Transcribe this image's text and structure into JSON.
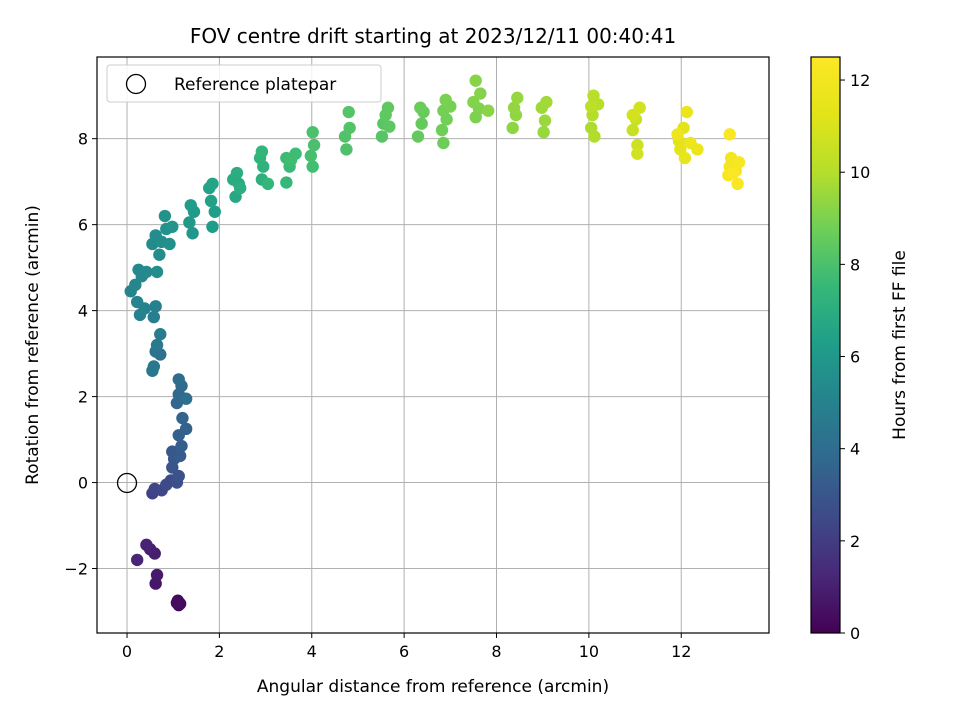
{
  "chart_data": {
    "type": "scatter",
    "title": "FOV centre drift starting at 2023/12/11 00:40:41",
    "xlabel": "Angular distance from reference (arcmin)",
    "ylabel": "Rotation from reference (arcmin)",
    "xlim": [
      -0.65,
      13.9
    ],
    "ylim": [
      -3.5,
      9.9
    ],
    "xticks": [
      0,
      2,
      4,
      6,
      8,
      10,
      12
    ],
    "yticks": [
      -2,
      0,
      2,
      4,
      6,
      8
    ],
    "xtick_labels": [
      "0",
      "2",
      "4",
      "6",
      "8",
      "10",
      "12"
    ],
    "ytick_labels": [
      "−2",
      "0",
      "2",
      "4",
      "6",
      "8"
    ],
    "grid": true,
    "legend": {
      "label": "Reference platepar",
      "placement": "top-left",
      "marker": "open-circle"
    },
    "reference_point": {
      "x": 0,
      "y": 0
    },
    "colorbar": {
      "label": "Hours from first FF file",
      "colormap": "viridis",
      "range": [
        0,
        12.5
      ],
      "ticks": [
        0,
        2,
        4,
        6,
        8,
        10,
        12
      ],
      "tick_labels": [
        "0",
        "2",
        "4",
        "6",
        "8",
        "10",
        "12"
      ]
    },
    "series": [
      {
        "points": [
          [
            1.12,
            -2.85,
            0.1
          ],
          [
            1.1,
            -2.75,
            0.2
          ],
          [
            1.15,
            -2.82,
            0.3
          ],
          [
            1.08,
            -2.8,
            0.4
          ],
          [
            0.62,
            -2.35,
            0.7
          ],
          [
            0.65,
            -2.15,
            0.8
          ],
          [
            0.6,
            -1.65,
            0.9
          ],
          [
            0.5,
            -1.55,
            1.0
          ],
          [
            0.42,
            -1.45,
            1.1
          ],
          [
            0.22,
            -1.8,
            1.2
          ],
          [
            0.55,
            -0.25,
            2.2
          ],
          [
            0.6,
            -0.15,
            2.3
          ],
          [
            0.75,
            -0.18,
            2.4
          ],
          [
            0.85,
            -0.05,
            2.5
          ],
          [
            0.95,
            0.05,
            2.6
          ],
          [
            1.08,
            0.0,
            2.7
          ],
          [
            1.12,
            0.15,
            2.8
          ],
          [
            0.98,
            0.35,
            2.9
          ],
          [
            1.02,
            0.55,
            3.0
          ],
          [
            0.98,
            0.72,
            3.1
          ],
          [
            1.15,
            0.62,
            3.2
          ],
          [
            1.18,
            0.85,
            3.3
          ],
          [
            1.12,
            1.1,
            3.4
          ],
          [
            1.28,
            1.25,
            3.5
          ],
          [
            1.2,
            1.5,
            3.6
          ],
          [
            1.08,
            1.85,
            3.7
          ],
          [
            1.12,
            2.05,
            3.8
          ],
          [
            1.18,
            2.25,
            3.9
          ],
          [
            1.12,
            2.4,
            4.0
          ],
          [
            1.28,
            1.95,
            4.1
          ],
          [
            0.72,
            2.98,
            4.2
          ],
          [
            0.62,
            3.05,
            4.3
          ],
          [
            0.55,
            2.6,
            4.4
          ],
          [
            0.58,
            2.7,
            4.5
          ],
          [
            0.65,
            3.2,
            4.6
          ],
          [
            0.72,
            3.45,
            4.7
          ],
          [
            0.58,
            3.85,
            4.8
          ],
          [
            0.62,
            4.1,
            4.9
          ],
          [
            0.28,
            3.9,
            5.0
          ],
          [
            0.38,
            4.05,
            5.05
          ],
          [
            0.22,
            4.2,
            5.1
          ],
          [
            0.08,
            4.45,
            5.15
          ],
          [
            0.18,
            4.6,
            5.2
          ],
          [
            0.32,
            4.8,
            5.25
          ],
          [
            0.25,
            4.95,
            5.3
          ],
          [
            0.42,
            4.9,
            5.35
          ],
          [
            0.55,
            5.55,
            5.4
          ],
          [
            0.62,
            5.75,
            5.45
          ],
          [
            0.7,
            5.3,
            5.5
          ],
          [
            0.75,
            5.6,
            5.55
          ],
          [
            0.65,
            4.9,
            5.6
          ],
          [
            0.92,
            5.55,
            5.65
          ],
          [
            0.85,
            5.9,
            5.7
          ],
          [
            0.82,
            6.2,
            5.75
          ],
          [
            0.98,
            5.95,
            5.8
          ],
          [
            1.42,
            5.8,
            5.9
          ],
          [
            1.35,
            6.05,
            6.0
          ],
          [
            1.45,
            6.3,
            6.1
          ],
          [
            1.38,
            6.45,
            6.15
          ],
          [
            1.85,
            5.95,
            6.2
          ],
          [
            1.9,
            6.3,
            6.3
          ],
          [
            1.82,
            6.55,
            6.4
          ],
          [
            1.78,
            6.85,
            6.5
          ],
          [
            1.85,
            6.95,
            6.6
          ],
          [
            2.35,
            6.65,
            6.7
          ],
          [
            2.42,
            6.95,
            6.8
          ],
          [
            2.3,
            7.05,
            6.9
          ],
          [
            2.38,
            7.2,
            7.0
          ],
          [
            2.45,
            6.85,
            7.05
          ],
          [
            2.92,
            7.05,
            7.1
          ],
          [
            2.95,
            7.35,
            7.2
          ],
          [
            2.88,
            7.55,
            7.3
          ],
          [
            2.92,
            7.7,
            7.4
          ],
          [
            3.05,
            6.95,
            7.45
          ],
          [
            3.45,
            6.98,
            7.5
          ],
          [
            3.52,
            7.35,
            7.6
          ],
          [
            3.45,
            7.55,
            7.65
          ],
          [
            3.65,
            7.65,
            7.7
          ],
          [
            3.55,
            7.5,
            7.75
          ],
          [
            4.02,
            7.35,
            7.8
          ],
          [
            3.98,
            7.6,
            7.9
          ],
          [
            4.05,
            7.85,
            7.95
          ],
          [
            4.02,
            8.15,
            8.0
          ],
          [
            4.75,
            7.75,
            8.05
          ],
          [
            4.72,
            8.05,
            8.1
          ],
          [
            4.82,
            8.25,
            8.15
          ],
          [
            4.8,
            8.62,
            8.2
          ],
          [
            5.52,
            8.05,
            8.25
          ],
          [
            5.55,
            8.35,
            8.3
          ],
          [
            5.68,
            8.28,
            8.35
          ],
          [
            5.6,
            8.55,
            8.4
          ],
          [
            5.65,
            8.72,
            8.45
          ],
          [
            6.3,
            8.05,
            8.5
          ],
          [
            6.38,
            8.35,
            8.55
          ],
          [
            6.42,
            8.62,
            8.6
          ],
          [
            6.35,
            8.72,
            8.65
          ],
          [
            6.85,
            7.9,
            8.7
          ],
          [
            6.82,
            8.2,
            8.75
          ],
          [
            6.92,
            8.45,
            8.8
          ],
          [
            6.85,
            8.65,
            8.85
          ],
          [
            7.0,
            8.75,
            8.9
          ],
          [
            6.9,
            8.9,
            8.95
          ],
          [
            7.55,
            8.5,
            9.0
          ],
          [
            7.62,
            8.7,
            9.05
          ],
          [
            7.5,
            8.85,
            9.1
          ],
          [
            7.65,
            9.05,
            9.15
          ],
          [
            7.55,
            9.35,
            9.2
          ],
          [
            7.82,
            8.65,
            9.25
          ],
          [
            8.35,
            8.25,
            9.3
          ],
          [
            8.42,
            8.55,
            9.35
          ],
          [
            8.38,
            8.72,
            9.4
          ],
          [
            8.45,
            8.95,
            9.45
          ],
          [
            9.02,
            8.15,
            9.5
          ],
          [
            9.05,
            8.42,
            9.55
          ],
          [
            8.98,
            8.72,
            9.6
          ],
          [
            9.08,
            8.85,
            9.65
          ],
          [
            10.05,
            8.25,
            9.85
          ],
          [
            10.12,
            8.05,
            9.95
          ],
          [
            10.08,
            8.55,
            10.0
          ],
          [
            10.2,
            8.8,
            10.1
          ],
          [
            10.1,
            9.0,
            10.15
          ],
          [
            10.05,
            8.75,
            10.2
          ],
          [
            10.95,
            8.2,
            10.5
          ],
          [
            11.02,
            8.45,
            10.55
          ],
          [
            11.05,
            7.85,
            10.65
          ],
          [
            11.05,
            7.65,
            10.75
          ],
          [
            11.1,
            8.72,
            10.8
          ],
          [
            10.95,
            8.55,
            10.85
          ],
          [
            11.95,
            7.95,
            11.2
          ],
          [
            12.05,
            8.25,
            11.3
          ],
          [
            11.98,
            7.75,
            11.4
          ],
          [
            12.08,
            7.55,
            11.5
          ],
          [
            12.12,
            8.62,
            11.6
          ],
          [
            12.35,
            7.75,
            11.7
          ],
          [
            12.2,
            7.9,
            11.75
          ],
          [
            11.92,
            8.1,
            11.8
          ],
          [
            13.05,
            7.35,
            12.0
          ],
          [
            13.08,
            7.55,
            12.05
          ],
          [
            13.18,
            7.25,
            12.15
          ],
          [
            13.25,
            7.45,
            12.2
          ],
          [
            13.02,
            7.15,
            12.25
          ],
          [
            13.22,
            6.95,
            12.3
          ],
          [
            13.05,
            8.1,
            12.35
          ],
          [
            13.12,
            7.2,
            12.4
          ]
        ]
      }
    ]
  }
}
